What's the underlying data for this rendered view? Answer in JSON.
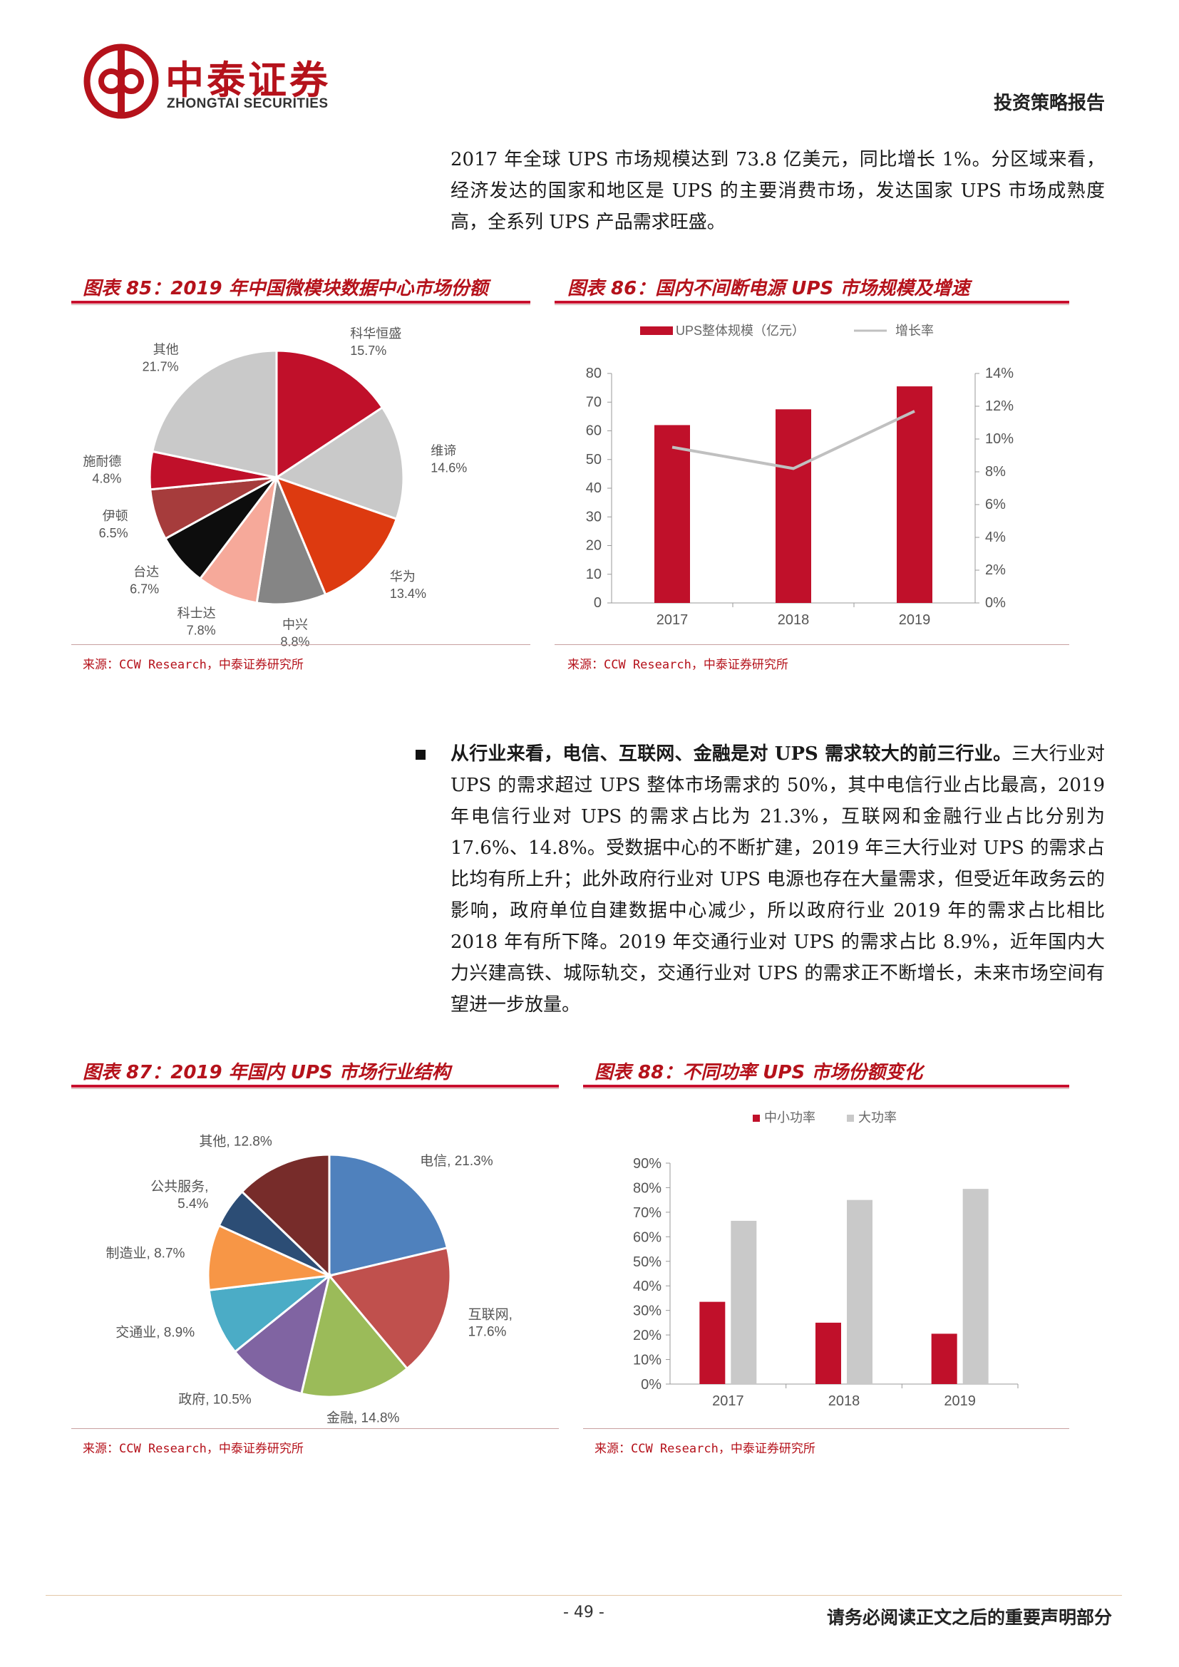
{
  "header": {
    "logo_cn": "中泰证券",
    "logo_en": "ZHONGTAI SECURITIES",
    "report_type": "投资策略报告"
  },
  "intro_paragraph": "2017 年全球 UPS 市场规模达到 73.8 亿美元，同比增长 1%。分区域来看，经济发达的国家和地区是 UPS 的主要消费市场，发达国家 UPS 市场成熟度高，全系列 UPS 产品需求旺盛。",
  "bullet": {
    "bold_lead": "从行业来看，电信、互联网、金融是对 UPS 需求较大的前三行业。",
    "body": "三大行业对 UPS 的需求超过 UPS 整体市场需求的 50%，其中电信行业占比最高，2019 年电信行业对 UPS 的需求占比为 21.3%，互联网和金融行业占比分别为 17.6%、14.8%。受数据中心的不断扩建，2019 年三大行业对 UPS 的需求占比均有所上升；此外政府行业对 UPS 电源也存在大量需求，但受近年政务云的影响，政府单位自建数据中心减少，所以政府行业 2019 年的需求占比相比 2018 年有所下降。2019 年交通行业对 UPS 的需求占比 8.9%，近年国内大力兴建高铁、城际轨交，交通行业对 UPS 的需求正不断增长，未来市场空间有望进一步放量。"
  },
  "figures": {
    "fig85": {
      "title": "图表 85：2019 年中国微模块数据中心市场份额",
      "source": "来源：CCW Research，中泰证券研究所"
    },
    "fig86": {
      "title": "图表 86：国内不间断电源 UPS 市场规模及增速",
      "source": "来源：CCW Research，中泰证券研究所"
    },
    "fig87": {
      "title": "图表 87：2019 年国内 UPS 市场行业结构",
      "source": "来源：CCW Research，中泰证券研究所"
    },
    "fig88": {
      "title": "图表 88：不同功率 UPS 市场份额变化",
      "source": "来源：CCW Research，中泰证券研究所"
    }
  },
  "chart_data": [
    {
      "id": "fig85",
      "type": "pie",
      "title": "",
      "slices": [
        {
          "label": "科华恒盛",
          "value": 15.7,
          "value_label": "15.7%",
          "color": "#c0102a"
        },
        {
          "label": "维谛",
          "value": 14.6,
          "value_label": "14.6%",
          "color": "#c9c9c9"
        },
        {
          "label": "华为",
          "value": 13.4,
          "value_label": "13.4%",
          "color": "#dd3a10"
        },
        {
          "label": "中兴",
          "value": 8.8,
          "value_label": "8.8%",
          "color": "#858585"
        },
        {
          "label": "科士达",
          "value": 7.8,
          "value_label": "7.8%",
          "color": "#f6a99a"
        },
        {
          "label": "台达",
          "value": 6.7,
          "value_label": "6.7%",
          "color": "#0d0d0d"
        },
        {
          "label": "伊顿",
          "value": 6.5,
          "value_label": "6.5%",
          "color": "#a63c3c"
        },
        {
          "label": "施耐德",
          "value": 4.8,
          "value_label": "4.8%",
          "color": "#c0102a"
        },
        {
          "label": "其他",
          "value": 21.7,
          "value_label": "21.7%",
          "color": "#c9c9c9"
        }
      ]
    },
    {
      "id": "fig86",
      "type": "bar",
      "categories": [
        "2017",
        "2018",
        "2019"
      ],
      "series": [
        {
          "name": "UPS整体规模（亿元）",
          "type": "bar",
          "axis": "left",
          "values": [
            62,
            67.5,
            75.5
          ],
          "color": "#c0102a"
        },
        {
          "name": "增长率",
          "type": "line",
          "axis": "right",
          "values": [
            9.5,
            8.2,
            11.7
          ],
          "color": "#c0c0c0"
        }
      ],
      "left_ticks": [
        "0",
        "10",
        "20",
        "30",
        "40",
        "50",
        "60",
        "70",
        "80"
      ],
      "right_ticks": [
        "0%",
        "2%",
        "4%",
        "6%",
        "8%",
        "10%",
        "12%",
        "14%"
      ],
      "ylim_left": [
        0,
        80
      ],
      "ylim_right": [
        0,
        14
      ]
    },
    {
      "id": "fig87",
      "type": "pie",
      "title": "",
      "slices": [
        {
          "label": "电信",
          "value": 21.3,
          "value_label": "电信, 21.3%",
          "color": "#4f81bd"
        },
        {
          "label": "互联网",
          "value": 17.6,
          "value_label": "互联网, 17.6%",
          "color": "#c0504d"
        },
        {
          "label": "金融",
          "value": 14.8,
          "value_label": "金融, 14.8%",
          "color": "#9bbb59"
        },
        {
          "label": "政府",
          "value": 10.5,
          "value_label": "政府, 10.5%",
          "color": "#8064a2"
        },
        {
          "label": "交通业",
          "value": 8.9,
          "value_label": "交通业, 8.9%",
          "color": "#4bacc6"
        },
        {
          "label": "制造业",
          "value": 8.7,
          "value_label": "制造业, 8.7%",
          "color": "#f79646"
        },
        {
          "label": "公共服务",
          "value": 5.4,
          "value_label": "公共服务, 5.4%",
          "color": "#2c4d75"
        },
        {
          "label": "其他",
          "value": 12.8,
          "value_label": "其他, 12.8%",
          "color": "#772c2a"
        }
      ]
    },
    {
      "id": "fig88",
      "type": "bar",
      "categories": [
        "2017",
        "2018",
        "2019"
      ],
      "series": [
        {
          "name": "中小功率",
          "values": [
            33.5,
            25,
            20.5
          ],
          "color": "#c0102a"
        },
        {
          "name": "大功率",
          "values": [
            66.5,
            75,
            79.5
          ],
          "color": "#c9c9c9"
        }
      ],
      "y_ticks": [
        "0%",
        "10%",
        "20%",
        "30%",
        "40%",
        "50%",
        "60%",
        "70%",
        "80%",
        "90%"
      ],
      "ylim": [
        0,
        90
      ]
    }
  ],
  "footer": {
    "page_number": "- 49 -",
    "disclaimer": "请务必阅读正文之后的重要声明部分"
  }
}
